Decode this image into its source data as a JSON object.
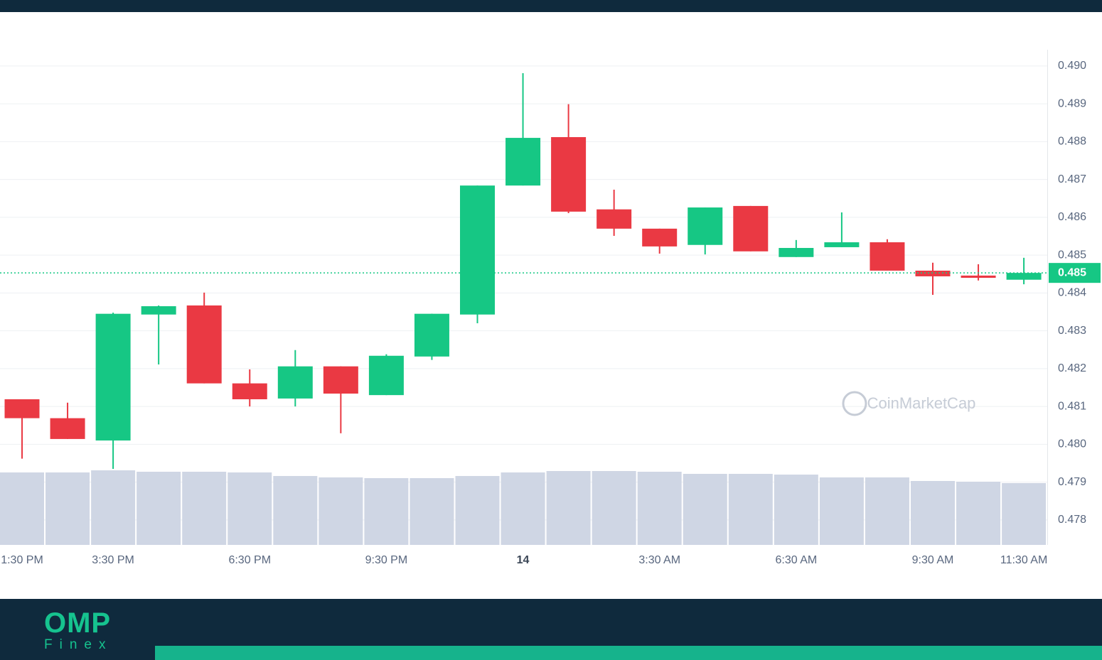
{
  "chart_data": {
    "type": "candlestick",
    "x": [
      "1:30 PM",
      null,
      "3:30 PM",
      null,
      null,
      "6:30 PM",
      null,
      null,
      "9:30 PM",
      null,
      null,
      "14",
      null,
      null,
      "3:30 AM",
      null,
      null,
      "6:30 AM",
      null,
      null,
      "9:30 AM",
      null,
      "11:30 AM"
    ],
    "open": [
      0.48119,
      0.48069,
      0.4801,
      0.48343,
      0.48367,
      0.48161,
      0.48121,
      0.48206,
      0.4813,
      0.48232,
      0.48343,
      0.48684,
      0.48812,
      0.48621,
      0.4857,
      0.48527,
      0.4863,
      0.48495,
      0.48521,
      0.48534,
      0.48459,
      0.48446,
      0.48435
    ],
    "high": [
      0.48119,
      0.4811,
      0.48348,
      0.48367,
      0.48401,
      0.48198,
      0.48249,
      0.48206,
      0.48238,
      0.48345,
      0.48684,
      0.48981,
      0.48899,
      0.48673,
      0.4857,
      0.48626,
      0.4863,
      0.4854,
      0.48613,
      0.48542,
      0.4848,
      0.48476,
      0.48493
    ],
    "low": [
      0.47962,
      0.48014,
      0.47935,
      0.48211,
      0.48161,
      0.481,
      0.481,
      0.48029,
      0.4813,
      0.48223,
      0.4832,
      0.48684,
      0.48611,
      0.48551,
      0.48504,
      0.48502,
      0.4851,
      0.48495,
      0.48521,
      0.48459,
      0.48395,
      0.48433,
      0.48423
    ],
    "close": [
      0.48069,
      0.48014,
      0.48345,
      0.48365,
      0.48161,
      0.48119,
      0.48206,
      0.48134,
      0.48234,
      0.48345,
      0.48684,
      0.4881,
      0.48615,
      0.4857,
      0.48523,
      0.48626,
      0.4851,
      0.48519,
      0.48534,
      0.48459,
      0.48444,
      0.4844,
      0.48453
    ],
    "volume": [
      102,
      102,
      105,
      103,
      103,
      102,
      97,
      95,
      94,
      94,
      97,
      102,
      104,
      104,
      103,
      100,
      100,
      99,
      95,
      95,
      90,
      89,
      87
    ],
    "up_color": "#16c784",
    "down_color": "#ea3943",
    "volume_color": "#cfd6e4",
    "ylim": [
      0.47734,
      0.49043
    ],
    "yticks": [
      {
        "value": 0.49,
        "label": "0.490"
      },
      {
        "value": 0.489,
        "label": "0.489"
      },
      {
        "value": 0.488,
        "label": "0.488"
      },
      {
        "value": 0.487,
        "label": "0.487"
      },
      {
        "value": 0.486,
        "label": "0.486"
      },
      {
        "value": 0.485,
        "label": "0.485"
      },
      {
        "value": 0.484,
        "label": "0.484"
      },
      {
        "value": 0.483,
        "label": "0.483"
      },
      {
        "value": 0.482,
        "label": "0.482"
      },
      {
        "value": 0.481,
        "label": "0.481"
      },
      {
        "value": 0.48,
        "label": "0.480"
      },
      {
        "value": 0.479,
        "label": "0.479"
      },
      {
        "value": 0.478,
        "label": "0.478"
      }
    ],
    "current_price": {
      "value": 0.48453,
      "label": "0.485"
    },
    "grid": true,
    "watermark": "CoinMarketCap"
  },
  "brand": {
    "name": "OMP",
    "tagline": "Finex"
  }
}
